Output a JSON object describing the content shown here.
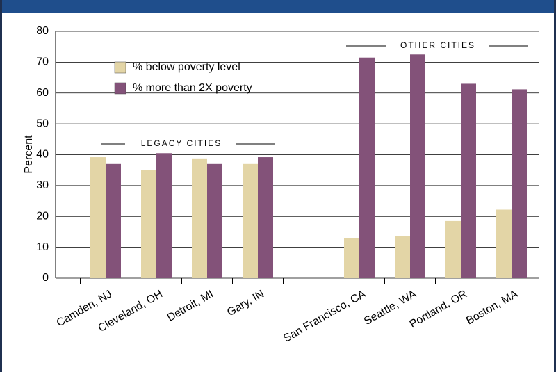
{
  "chart_data": {
    "type": "bar",
    "categories": [
      "Camden, NJ",
      "Cleveland, OH",
      "Detroit, MI",
      "Gary, IN",
      null,
      "San Francisco, CA",
      "Seattle, WA",
      "Portland, OR",
      "Boston, MA"
    ],
    "series": [
      {
        "name": "% below poverty level",
        "color": "#e3d5a6",
        "values": [
          39.2,
          35,
          38.8,
          37,
          null,
          13,
          13.7,
          18.5,
          22.2
        ]
      },
      {
        "name": "% more than 2X poverty",
        "color": "#835279",
        "values": [
          37,
          40.5,
          37,
          39.2,
          null,
          71.5,
          72.5,
          63,
          61.2
        ]
      }
    ],
    "ylabel": "Percent",
    "annotations": [
      "LEGACY CITIES",
      "OTHER CITIES"
    ],
    "ylim": [
      0,
      80
    ],
    "yticks": [
      0,
      10,
      20,
      30,
      40,
      50,
      60,
      70,
      80
    ],
    "grid": true,
    "legend": "upper left"
  }
}
